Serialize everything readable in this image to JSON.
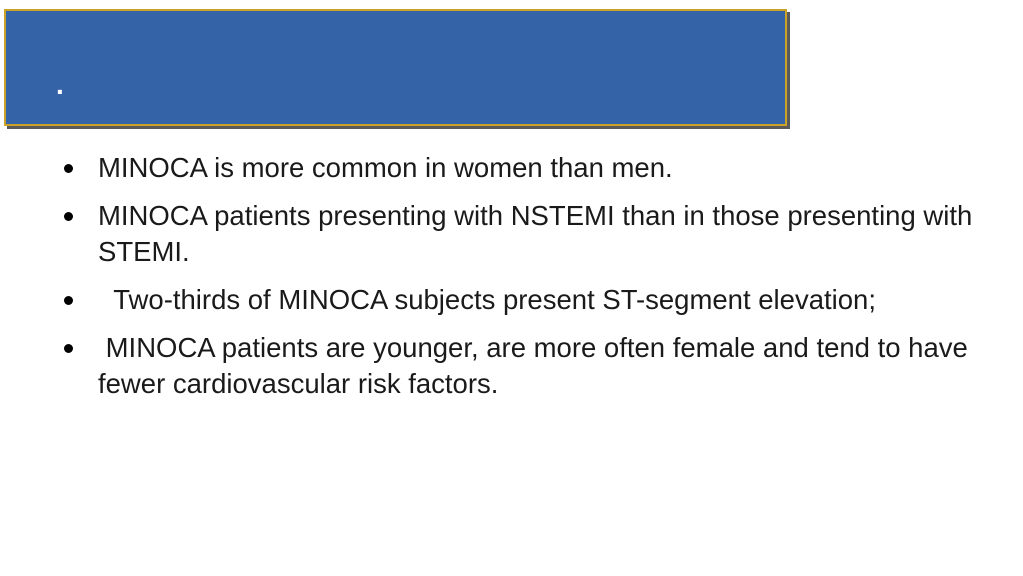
{
  "slide": {
    "title": ".",
    "bullets": [
      "MINOCA is more common in women than men.",
      "MINOCA patients presenting with NSTEMI than in those presenting with STEMI.",
      "  Two-thirds of MINOCA subjects present ST-segment elevation;",
      " MINOCA patients are younger, are more often female and tend to have fewer cardiovascular risk factors."
    ]
  },
  "colors": {
    "banner": "#3563a7",
    "banner_border": "#c9a227",
    "text": "#1a1a1a"
  }
}
